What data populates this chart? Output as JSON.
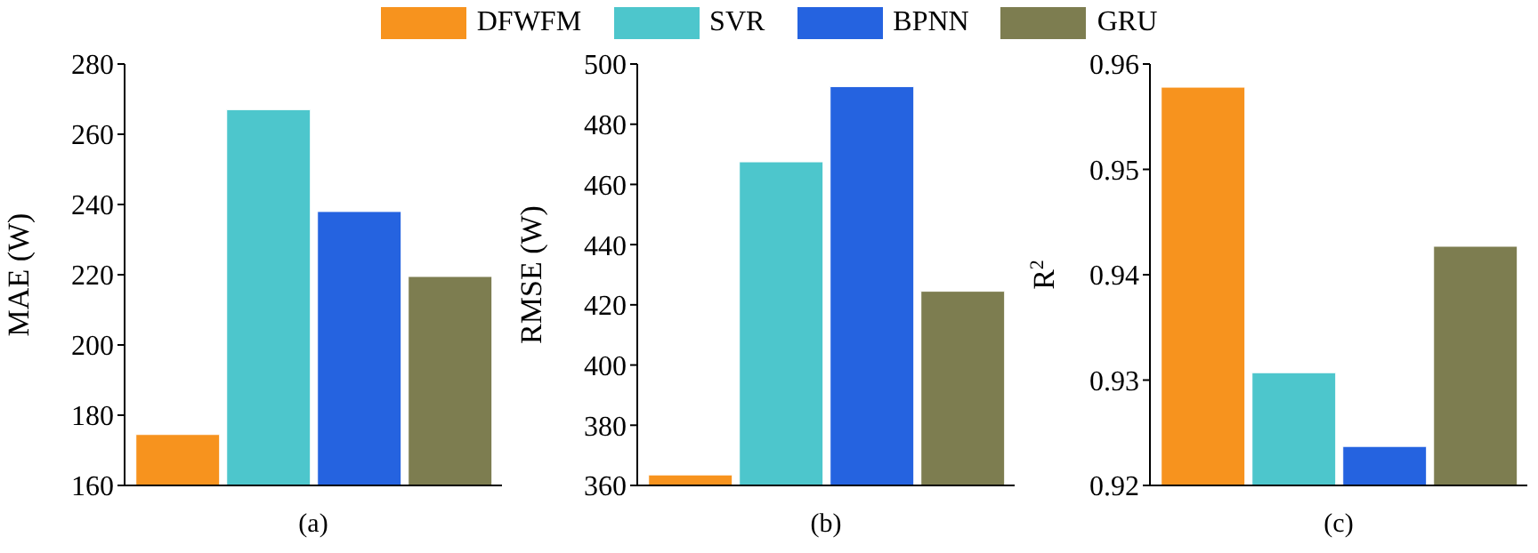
{
  "chart_data": [
    {
      "type": "bar",
      "xlabel": "(a)",
      "ylabel": "MAE  (W)",
      "categories": [
        null
      ],
      "legend": "top",
      "ylim": [
        160,
        280
      ],
      "yticks": [
        160,
        180,
        200,
        220,
        240,
        260,
        280
      ],
      "grid": false,
      "series": [
        {
          "name": "DFWFM",
          "color": "#f7931e",
          "values": [
            174.5
          ]
        },
        {
          "name": "SVR",
          "color": "#4dc6cc",
          "values": [
            267
          ]
        },
        {
          "name": "BPNN",
          "color": "#2563e0",
          "values": [
            238
          ]
        },
        {
          "name": "GRU",
          "color": "#7d7d50",
          "values": [
            219.5
          ]
        }
      ]
    },
    {
      "type": "bar",
      "xlabel": "(b)",
      "ylabel": "RMSE  (W)",
      "categories": [
        null
      ],
      "ylim": [
        360,
        500
      ],
      "yticks": [
        360,
        380,
        400,
        420,
        440,
        460,
        480,
        500
      ],
      "grid": false,
      "series": [
        {
          "color": "#f7931e",
          "values": [
            363.5
          ]
        },
        {
          "color": "#4dc6cc",
          "values": [
            467.5
          ]
        },
        {
          "color": "#2563e0",
          "values": [
            492.5
          ]
        },
        {
          "color": "#7d7d50",
          "values": [
            424.5
          ]
        }
      ]
    },
    {
      "type": "bar",
      "xlabel": "(c)",
      "ylabel": "R$^{2}$",
      "categories": [
        null
      ],
      "ylim": [
        0.92,
        0.96
      ],
      "yticks": [
        0.92,
        0.93,
        0.94,
        0.95,
        0.96
      ],
      "grid": false,
      "series": [
        {
          "color": "#f7931e",
          "values": [
            0.9578
          ]
        },
        {
          "color": "#4dc6cc",
          "values": [
            0.9307
          ]
        },
        {
          "color": "#2563e0",
          "values": [
            0.9237
          ]
        },
        {
          "color": "#7d7d50",
          "values": [
            0.9427
          ]
        }
      ]
    }
  ]
}
